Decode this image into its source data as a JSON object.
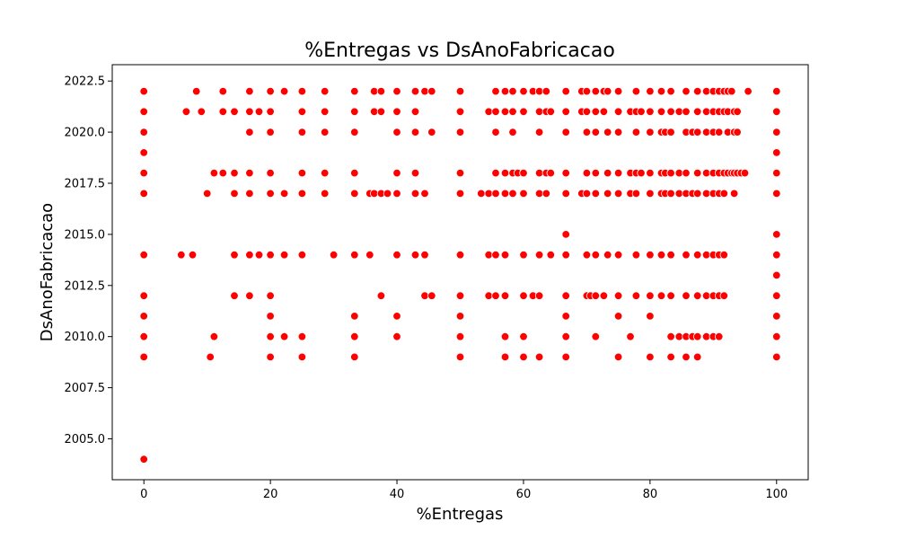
{
  "chart_data": {
    "type": "scatter",
    "title": "%Entregas vs DsAnoFabricacao",
    "xlabel": "%Entregas",
    "ylabel": "DsAnoFabricacao",
    "xlim": [
      -5,
      105
    ],
    "ylim": [
      2003.0,
      2023.3
    ],
    "xticks": [
      {
        "value": 0,
        "label": "0"
      },
      {
        "value": 20,
        "label": "20"
      },
      {
        "value": 40,
        "label": "40"
      },
      {
        "value": 60,
        "label": "60"
      },
      {
        "value": 80,
        "label": "80"
      },
      {
        "value": 100,
        "label": "100"
      }
    ],
    "yticks": [
      {
        "value": 2005.0,
        "label": "2005.0"
      },
      {
        "value": 2007.5,
        "label": "2007.5"
      },
      {
        "value": 2010.0,
        "label": "2010.0"
      },
      {
        "value": 2012.5,
        "label": "2012.5"
      },
      {
        "value": 2015.0,
        "label": "2015.0"
      },
      {
        "value": 2017.5,
        "label": "2017.5"
      },
      {
        "value": 2020.0,
        "label": "2020.0"
      },
      {
        "value": 2022.5,
        "label": "2022.5"
      }
    ],
    "grid": false,
    "marker_color": "#ff0000",
    "rows": [
      {
        "y": 2022,
        "x": [
          0,
          8.3,
          12.5,
          16.7,
          20,
          22.2,
          25,
          28.6,
          33.3,
          36.4,
          37.5,
          40,
          42.9,
          44.4,
          45.5,
          50,
          55.6,
          57.1,
          58.3,
          60,
          61.5,
          62.5,
          63.6,
          66.7,
          69.2,
          70,
          71.4,
          72.7,
          73.3,
          75,
          77.8,
          80,
          81.8,
          83.3,
          85.7,
          87.5,
          88.9,
          90,
          90.9,
          91.7,
          92.3,
          92.9,
          95.5,
          100
        ]
      },
      {
        "y": 2021,
        "x": [
          0,
          6.7,
          9.1,
          12.5,
          14.3,
          16.7,
          18.2,
          20,
          25,
          28.6,
          33.3,
          36.4,
          37.5,
          40,
          42.9,
          50,
          54.5,
          55.6,
          57.1,
          58.3,
          60,
          62.5,
          63.6,
          64.3,
          66.7,
          69.2,
          70,
          71.4,
          72.7,
          75,
          76.9,
          77.8,
          78.6,
          80,
          81.8,
          83.3,
          84.6,
          85.7,
          87.5,
          88.9,
          90,
          90.9,
          91.7,
          92.3,
          93.3,
          93.8,
          100
        ]
      },
      {
        "y": 2020,
        "x": [
          0,
          16.7,
          20,
          25,
          28.6,
          33.3,
          40,
          42.9,
          45.5,
          50,
          55.6,
          58.3,
          62.5,
          66.7,
          70,
          71.4,
          73.3,
          75,
          77.8,
          80,
          81.8,
          82.4,
          83.3,
          85.7,
          86.7,
          87.5,
          88.9,
          90,
          90.9,
          92.3,
          93.3,
          93.8,
          100
        ]
      },
      {
        "y": 2019,
        "x": [
          0,
          100
        ]
      },
      {
        "y": 2018,
        "x": [
          0,
          11.1,
          12.5,
          14.3,
          16.7,
          20,
          25,
          28.6,
          33.3,
          40,
          42.9,
          50,
          55.6,
          57.1,
          58.3,
          59.1,
          60,
          62.5,
          63.6,
          64.3,
          66.7,
          70,
          71.4,
          73.3,
          75,
          76.9,
          77.8,
          78.6,
          80,
          81.8,
          82.4,
          83.3,
          84.6,
          85.7,
          87.5,
          88.9,
          90,
          90.9,
          91.7,
          92.3,
          92.9,
          93.3,
          93.8,
          94.4,
          95,
          100
        ]
      },
      {
        "y": 2017,
        "x": [
          0,
          10,
          14.3,
          16.7,
          20,
          22.2,
          25,
          28.6,
          33.3,
          35.7,
          36.4,
          37.5,
          38.5,
          40,
          42.9,
          44.4,
          50,
          53.3,
          54.5,
          55.6,
          57.1,
          58.3,
          60,
          62.5,
          63.6,
          66.7,
          69.2,
          70,
          71.4,
          73.3,
          75,
          76.9,
          77.8,
          80,
          81.8,
          82.4,
          83.3,
          84.6,
          85.7,
          86.7,
          87.5,
          88.9,
          90,
          90.9,
          91.7,
          93.3,
          100
        ]
      },
      {
        "y": 2015,
        "x": [
          66.7,
          100
        ]
      },
      {
        "y": 2014,
        "x": [
          0,
          5.9,
          7.7,
          14.3,
          16.7,
          18.2,
          20,
          22.2,
          25,
          30,
          33.3,
          35.7,
          40,
          42.9,
          44.4,
          50,
          54.5,
          55.6,
          57.1,
          60,
          62.5,
          64.3,
          66.7,
          70,
          71.4,
          73.3,
          75,
          77.8,
          80,
          81.8,
          83.3,
          85.7,
          87.5,
          88.9,
          90,
          90.9,
          91.7,
          100
        ]
      },
      {
        "y": 2013,
        "x": [
          100
        ]
      },
      {
        "y": 2012,
        "x": [
          0,
          14.3,
          16.7,
          20,
          37.5,
          44.4,
          45.5,
          50,
          54.5,
          55.6,
          57.1,
          60,
          61.5,
          62.5,
          66.7,
          70,
          70.6,
          71.4,
          72.7,
          75,
          77.8,
          80,
          81.8,
          83.3,
          85.7,
          87.5,
          88.9,
          90,
          90.9,
          91.7,
          100
        ]
      },
      {
        "y": 2011,
        "x": [
          0,
          20,
          33.3,
          40,
          50,
          66.7,
          75,
          80,
          100
        ]
      },
      {
        "y": 2010,
        "x": [
          0,
          11.1,
          20,
          22.2,
          25,
          33.3,
          40,
          50,
          57.1,
          60,
          66.7,
          71.4,
          76.9,
          83.3,
          84.6,
          85.7,
          86.7,
          87.5,
          88.9,
          90,
          90.9,
          100
        ]
      },
      {
        "y": 2009,
        "x": [
          0,
          10.5,
          20,
          25,
          33.3,
          50,
          57.1,
          60,
          62.5,
          66.7,
          75,
          80,
          83.3,
          85.7,
          87.5,
          100
        ]
      },
      {
        "y": 2004,
        "x": [
          0
        ]
      }
    ]
  }
}
